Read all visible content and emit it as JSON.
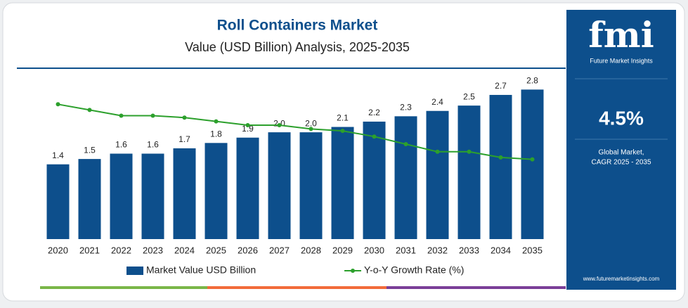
{
  "chart_data": {
    "type": "bar",
    "title": "Roll Containers Market",
    "subtitle": "Value (USD Billion) Analysis, 2025-2035",
    "categories": [
      "2020",
      "2021",
      "2022",
      "2023",
      "2024",
      "2025",
      "2026",
      "2027",
      "2028",
      "2029",
      "2030",
      "2031",
      "2032",
      "2033",
      "2034",
      "2035"
    ],
    "series": [
      {
        "name": "Market Value USD Billion",
        "type": "bar",
        "color": "#0d4f8c",
        "values": [
          1.4,
          1.5,
          1.6,
          1.6,
          1.7,
          1.8,
          1.9,
          2.0,
          2.0,
          2.1,
          2.2,
          2.3,
          2.4,
          2.5,
          2.7,
          2.8
        ],
        "value_labels": [
          "1.4",
          "1.5",
          "1.6",
          "1.6",
          "1.7",
          "1.8",
          "1.9",
          "2.0",
          "2.0",
          "2.1",
          "2.2",
          "2.3",
          "2.4",
          "2.5",
          "2.7",
          "2.8"
        ]
      },
      {
        "name": "Y-o-Y Growth Rate (%)",
        "type": "line",
        "axis": "y2",
        "color": "#2ca02c",
        "values": [
          7.1,
          6.8,
          6.5,
          6.5,
          6.4,
          6.2,
          6.0,
          6.0,
          5.8,
          5.7,
          5.4,
          5.0,
          4.6,
          4.6,
          4.3,
          4.2
        ]
      }
    ],
    "ylim": [
      0,
      3.2
    ],
    "y2lim": [
      0,
      9
    ]
  },
  "sidebar": {
    "logo": "fmi",
    "logo_caption": "Future Market Insights",
    "cagr": "4.5%",
    "cagr_caption_1": "Global Market,",
    "cagr_caption_2": "CAGR 2025 - 2035",
    "website": "www.futuremarketinsights.com"
  }
}
